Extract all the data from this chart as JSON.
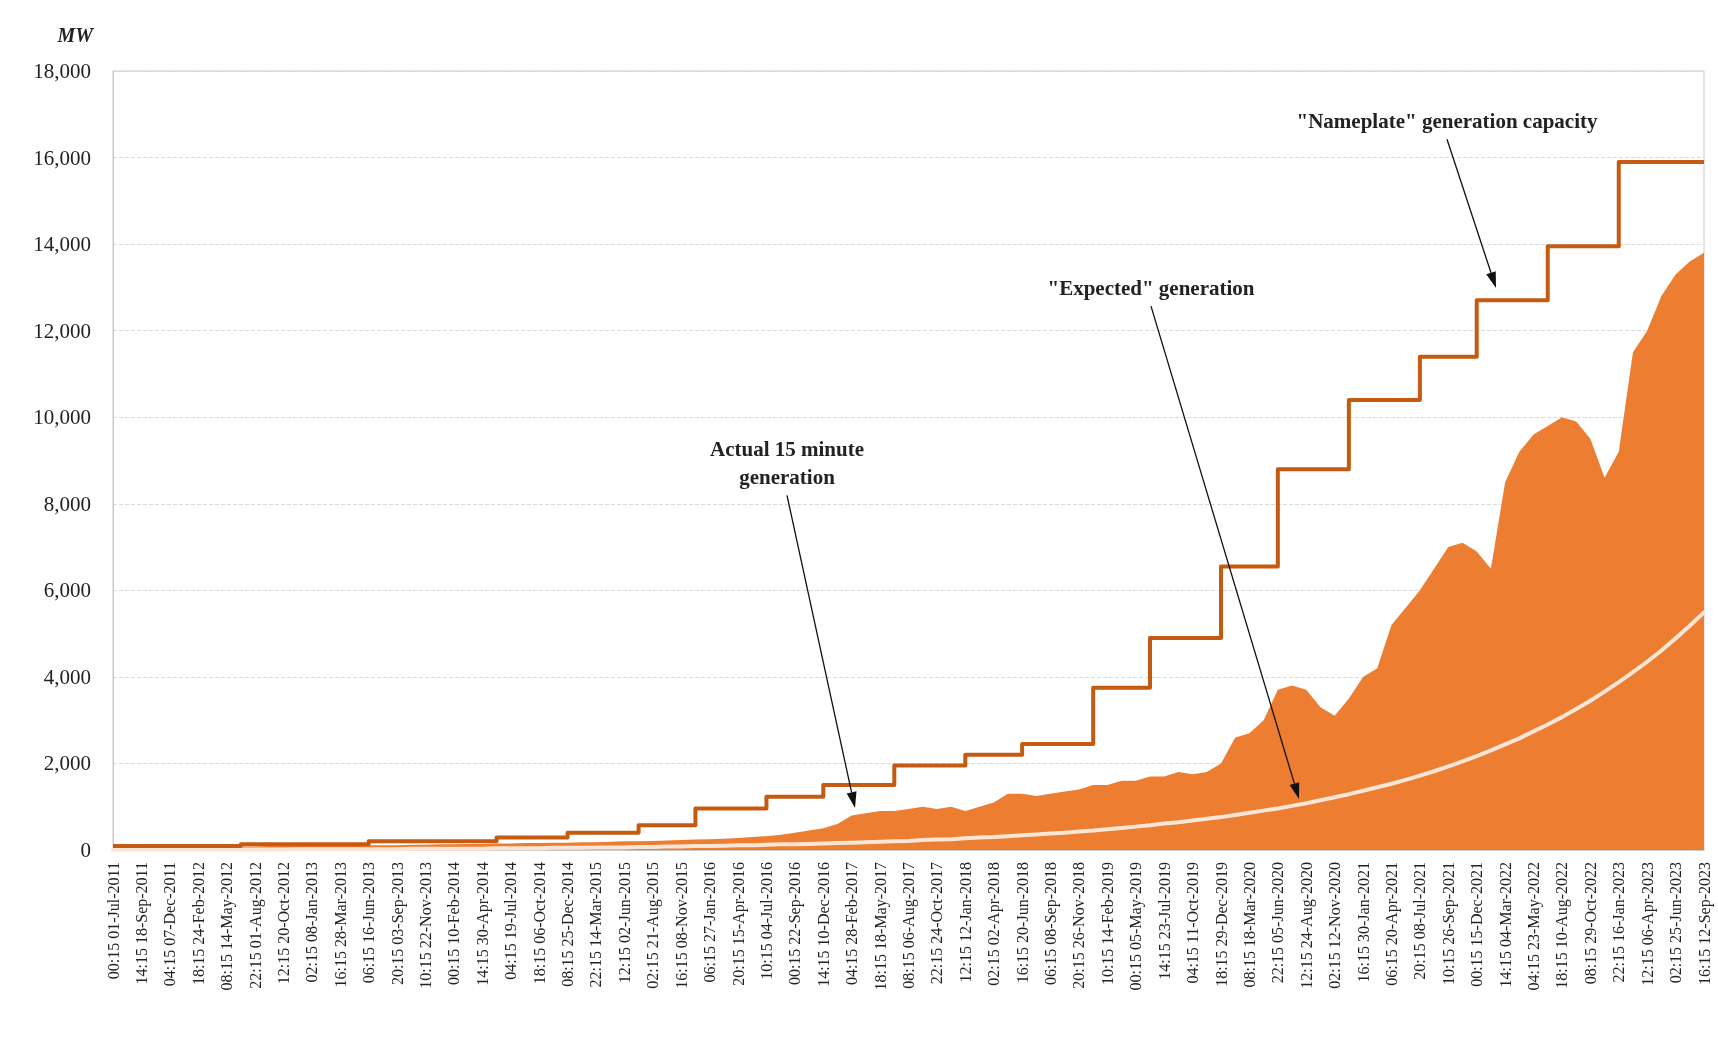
{
  "chart_data": {
    "type": "area",
    "ylabel": "MW",
    "categories": [
      "00:15 01-Jul-2011",
      null,
      "14:15 18-Sep-2011",
      null,
      "04:15 07-Dec-2011",
      null,
      "18:15 24-Feb-2012",
      null,
      "08:15 14-May-2012",
      null,
      "22:15 01-Aug-2012",
      null,
      "12:15 20-Oct-2012",
      null,
      "02:15 08-Jan-2013",
      null,
      "16:15 28-Mar-2013",
      null,
      "06:15 16-Jun-2013",
      null,
      "20:15 03-Sep-2013",
      null,
      "10:15 22-Nov-2013",
      null,
      "00:15 10-Feb-2014",
      null,
      "14:15 30-Apr-2014",
      null,
      "04:15 19-Jul-2014",
      null,
      "18:15 06-Oct-2014",
      null,
      "08:15 25-Dec-2014",
      null,
      "22:15 14-Mar-2015",
      null,
      "12:15 02-Jun-2015",
      null,
      "02:15 21-Aug-2015",
      null,
      "16:15 08-Nov-2015",
      null,
      "06:15 27-Jan-2016",
      null,
      "20:15 15-Apr-2016",
      null,
      "10:15 04-Jul-2016",
      null,
      "00:15 22-Sep-2016",
      null,
      "14:15 10-Dec-2016",
      null,
      "04:15 28-Feb-2017",
      null,
      "18:15 18-May-2017",
      null,
      "08:15 06-Aug-2017",
      null,
      "22:15 24-Oct-2017",
      null,
      "12:15 12-Jan-2018",
      null,
      "02:15 02-Apr-2018",
      null,
      "16:15 20-Jun-2018",
      null,
      "06:15 08-Sep-2018",
      null,
      "20:15 26-Nov-2018",
      null,
      "10:15 14-Feb-2019",
      null,
      "00:15 05-May-2019",
      null,
      "14:15 23-Jul-2019",
      null,
      "04:15 11-Oct-2019",
      null,
      "18:15 29-Dec-2019",
      null,
      "08:15 18-Mar-2020",
      null,
      "22:15 05-Jun-2020",
      null,
      "12:15 24-Aug-2020",
      null,
      "02:15 12-Nov-2020",
      null,
      "16:15 30-Jan-2021",
      null,
      "06:15 20-Apr-2021",
      null,
      "20:15 08-Jul-2021",
      null,
      "10:15 26-Sep-2021",
      null,
      "00:15 15-Dec-2021",
      null,
      "14:15 04-Mar-2022",
      null,
      "04:15 23-May-2022",
      null,
      "18:15 10-Aug-2022",
      null,
      "08:15 29-Oct-2022",
      null,
      "22:15 16-Jan-2023",
      null,
      "12:15 06-Apr-2023",
      null,
      "02:15 25-Jun-2023",
      null,
      "16:15 12-Sep-2023"
    ],
    "series": [
      {
        "color": "#ed7d31",
        "values": [
          60,
          60,
          70,
          70,
          70,
          70,
          70,
          80,
          80,
          80,
          80,
          90,
          90,
          90,
          100,
          100,
          100,
          100,
          110,
          110,
          110,
          120,
          120,
          130,
          130,
          140,
          140,
          150,
          150,
          160,
          160,
          170,
          170,
          180,
          180,
          190,
          200,
          200,
          210,
          220,
          230,
          240,
          250,
          260,
          280,
          300,
          320,
          350,
          400,
          450,
          500,
          600,
          800,
          850,
          900,
          900,
          950,
          1000,
          950,
          1000,
          900,
          1000,
          1100,
          1300,
          1300,
          1250,
          1300,
          1350,
          1400,
          1500,
          1500,
          1600,
          1600,
          1700,
          1700,
          1800,
          1750,
          1800,
          2000,
          2600,
          2700,
          3000,
          3700,
          3800,
          3700,
          3300,
          3100,
          3500,
          4000,
          4200,
          5200,
          5600,
          6000,
          6500,
          7000,
          7100,
          6900,
          6500,
          8500,
          9200,
          9600,
          9800,
          10000,
          9900,
          9500,
          8600,
          9200,
          11500,
          12000,
          12800,
          13300,
          13600,
          13800
        ]
      },
      {
        "type": "line",
        "color": "#fbe5d6",
        "values": [
          10,
          10,
          10,
          10,
          10,
          10,
          10,
          10,
          10,
          10,
          10,
          10,
          10,
          20,
          20,
          20,
          20,
          20,
          20,
          20,
          20,
          30,
          30,
          30,
          30,
          30,
          30,
          40,
          40,
          40,
          40,
          50,
          50,
          50,
          60,
          60,
          60,
          70,
          70,
          80,
          80,
          90,
          90,
          100,
          110,
          110,
          120,
          130,
          130,
          140,
          150,
          160,
          170,
          180,
          190,
          200,
          210,
          230,
          240,
          250,
          270,
          290,
          300,
          320,
          340,
          360,
          380,
          400,
          430,
          450,
          480,
          510,
          540,
          570,
          610,
          640,
          680,
          720,
          760,
          810,
          860,
          910,
          960,
          1020,
          1080,
          1150,
          1220,
          1290,
          1370,
          1450,
          1530,
          1620,
          1720,
          1820,
          1930,
          2050,
          2170,
          2300,
          2440,
          2580,
          2740,
          2900,
          3070,
          3260,
          3450,
          3660,
          3880,
          4110,
          4350,
          4610,
          4890,
          5180,
          5490
        ]
      },
      {
        "type": "step",
        "color": "#c55a11",
        "values": [
          90,
          90,
          90,
          90,
          90,
          90,
          90,
          90,
          90,
          130,
          130,
          130,
          130,
          130,
          130,
          130,
          130,
          130,
          200,
          200,
          200,
          200,
          200,
          200,
          200,
          200,
          200,
          290,
          290,
          290,
          290,
          290,
          400,
          400,
          400,
          400,
          400,
          570,
          570,
          570,
          570,
          960,
          960,
          960,
          960,
          960,
          1230,
          1230,
          1230,
          1230,
          1500,
          1500,
          1500,
          1500,
          1500,
          1950,
          1950,
          1950,
          1950,
          1950,
          2200,
          2200,
          2200,
          2200,
          2450,
          2450,
          2450,
          2450,
          2450,
          3750,
          3750,
          3750,
          3750,
          4900,
          4900,
          4900,
          4900,
          4900,
          6550,
          6550,
          6550,
          6550,
          8800,
          8800,
          8800,
          8800,
          8800,
          10400,
          10400,
          10400,
          10400,
          10400,
          11400,
          11400,
          11400,
          11400,
          12700,
          12700,
          12700,
          12700,
          12700,
          13950,
          13950,
          13950,
          13950,
          13950,
          15900,
          15900,
          15900,
          15900,
          15900,
          15900,
          15900
        ]
      }
    ],
    "ylim": [
      0,
      18000
    ],
    "yticks": [
      {
        "value": 0,
        "label": "0"
      },
      {
        "value": 2000,
        "label": "2,000"
      },
      {
        "value": 4000,
        "label": "4,000"
      },
      {
        "value": 6000,
        "label": "6,000"
      },
      {
        "value": 8000,
        "label": "8,000"
      },
      {
        "value": 10000,
        "label": "10,000"
      },
      {
        "value": 12000,
        "label": "12,000"
      },
      {
        "value": 14000,
        "label": "14,000"
      },
      {
        "value": 16000,
        "label": "16,000"
      },
      {
        "value": 18000,
        "label": "18,000"
      }
    ],
    "grid": "y",
    "marker": "none",
    "annotations": [
      "Actual 15 minute generation",
      "\"Expected\" generation",
      "\"Nameplate\" generation capacity"
    ]
  }
}
